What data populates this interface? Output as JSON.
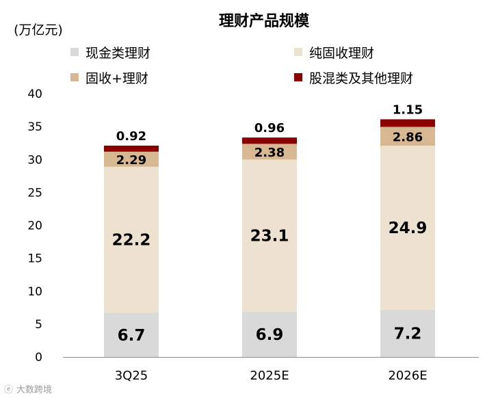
{
  "chart_data": {
    "type": "stacked-bar",
    "title": "理财产品规模",
    "unit_label": "(万亿元)",
    "categories": [
      "3Q25",
      "2025E",
      "2026E"
    ],
    "series": [
      {
        "name": "现金类理财",
        "color": "#d9d9d9",
        "values": [
          6.7,
          6.9,
          7.2
        ],
        "labels": [
          "6.7",
          "6.9",
          "7.2"
        ]
      },
      {
        "name": "纯固收理财",
        "color": "#ede1cf",
        "values": [
          22.2,
          23.1,
          24.9
        ],
        "labels": [
          "22.2",
          "23.1",
          "24.9"
        ]
      },
      {
        "name": "固收+理财",
        "color": "#d7b892",
        "values": [
          2.29,
          2.38,
          2.86
        ],
        "labels": [
          "2.29",
          "2.38",
          "2.86"
        ]
      },
      {
        "name": "股混类及其他理财",
        "color": "#8b0000",
        "values": [
          0.92,
          0.96,
          1.15
        ],
        "labels": [
          "0.92",
          "0.96",
          "1.15"
        ]
      }
    ],
    "ylim": [
      0,
      40
    ],
    "yticks": [
      0,
      5,
      10,
      15,
      20,
      25,
      30,
      35,
      40
    ],
    "legend_position": "top",
    "grid": false
  },
  "watermark": "大数跨境"
}
